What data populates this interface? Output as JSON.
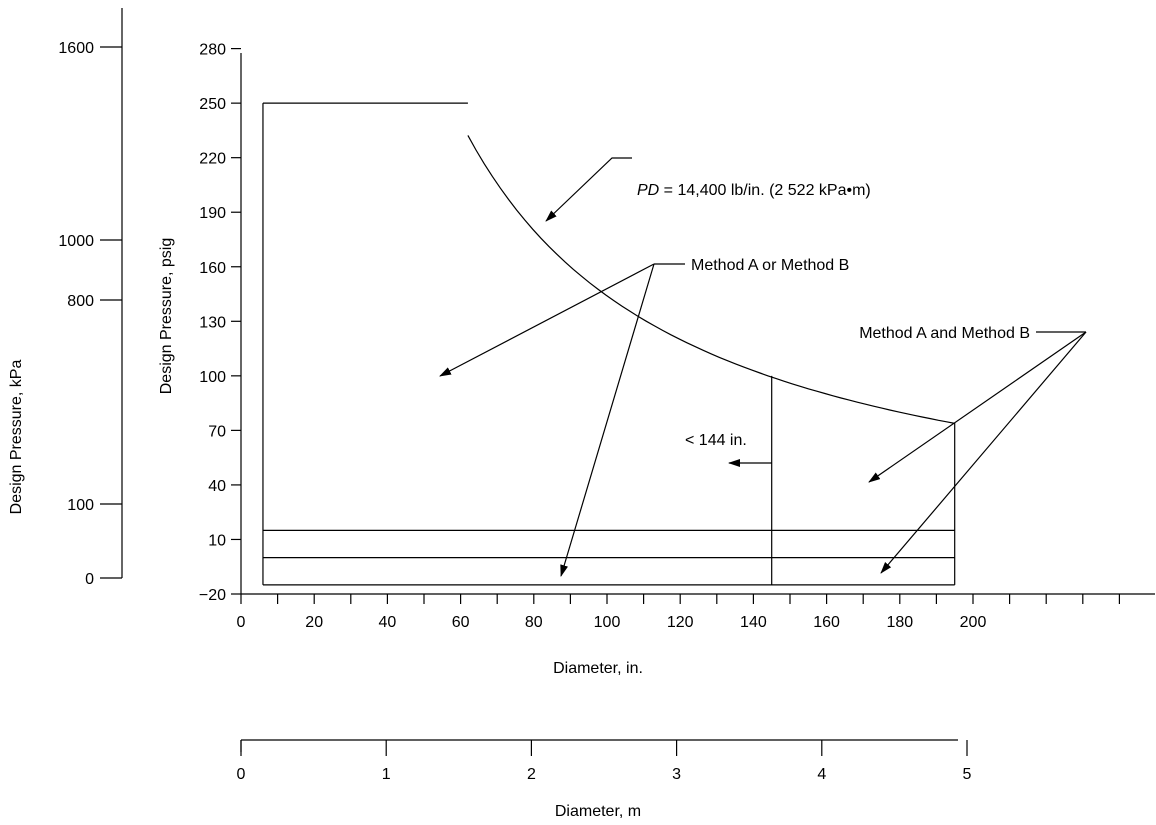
{
  "chart_data": {
    "type": "line",
    "title": "",
    "xlabel": "Diameter, in.",
    "ylabel": "Design Pressure, psig",
    "xlim": [
      0,
      200
    ],
    "ylim": [
      -20,
      280
    ],
    "x_ticks": [
      0,
      20,
      40,
      60,
      80,
      100,
      120,
      140,
      160,
      180,
      200
    ],
    "y_ticks": [
      -20,
      10,
      40,
      70,
      100,
      130,
      160,
      190,
      220,
      250,
      280
    ],
    "y_tick_labels": [
      "−20",
      "10",
      "40",
      "70",
      "100",
      "130",
      "160",
      "190",
      "220",
      "250",
      "280"
    ],
    "secondary_x": {
      "label": "Diameter, m",
      "ticks": [
        0,
        1,
        2,
        3,
        4,
        5
      ]
    },
    "secondary_y": {
      "label": "Design Pressure, kPa",
      "ticks": [
        0,
        100,
        800,
        1000,
        1600
      ]
    },
    "series": [
      {
        "values_description": "PD = 14,400 lb/in. curve",
        "x": [
          57.6,
          60,
          65,
          70,
          80,
          90,
          100,
          110,
          120,
          130,
          144,
          160,
          180,
          194
        ],
        "y": [
          250,
          240,
          221.5,
          205.7,
          180,
          160,
          144,
          130.9,
          120,
          110.8,
          100,
          90,
          80,
          74.2
        ]
      }
    ],
    "region_lines": {
      "left_x": 6,
      "right_x": 195,
      "bottom_y": -15,
      "top_y": 250,
      "flat_top_end_x": 62,
      "divider_x": 145,
      "divider_top_y": 100,
      "horizontal_lines_y": [
        0,
        15
      ]
    },
    "annotations": [
      {
        "text": "PD",
        "suffix": " = 14,400 lb/in. (2 522 kPa•m)"
      },
      {
        "text": "Method A or Method B"
      },
      {
        "text": "Method A and Method B"
      },
      {
        "text": "< 144 in."
      }
    ]
  }
}
